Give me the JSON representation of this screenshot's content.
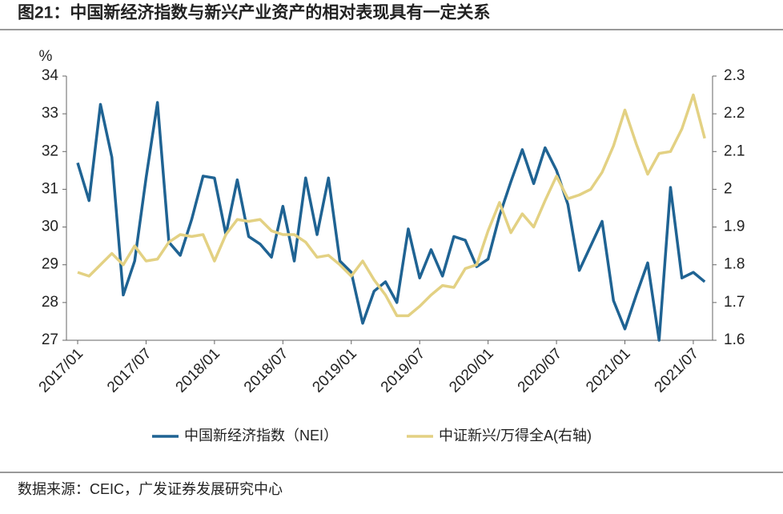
{
  "chart_data": {
    "type": "line",
    "title": "图21：中国新经济指数与新兴产业资产的相对表现具有一定关系",
    "source": "数据来源：CEIC，广发证券发展研究中心",
    "y_label": "%",
    "categories": [
      "2017/01",
      null,
      null,
      null,
      null,
      null,
      "2017/07",
      null,
      null,
      null,
      null,
      null,
      "2018/01",
      null,
      null,
      null,
      null,
      null,
      "2018/07",
      null,
      null,
      null,
      null,
      null,
      "2019/01",
      null,
      null,
      null,
      null,
      null,
      "2019/07",
      null,
      null,
      null,
      null,
      null,
      "2020/01",
      null,
      null,
      null,
      null,
      null,
      "2020/07",
      null,
      null,
      null,
      null,
      null,
      "2021/01",
      null,
      null,
      null,
      null,
      null,
      "2021/07",
      null
    ],
    "series": [
      {
        "name": "中国新经济指数（NEI）",
        "color": "#1f6393",
        "values": [
          31.7,
          30.7,
          33.25,
          31.85,
          28.2,
          29.1,
          31.3,
          33.3,
          29.6,
          29.25,
          30.2,
          31.35,
          31.3,
          29.8,
          31.25,
          29.75,
          29.55,
          29.2,
          30.55,
          29.1,
          31.3,
          29.8,
          31.3,
          29.1,
          28.8,
          27.45,
          28.3,
          28.55,
          28.0,
          29.95,
          28.65,
          29.4,
          28.7,
          29.75,
          29.65,
          28.95,
          29.15,
          30.3,
          31.2,
          32.05,
          31.15,
          32.1,
          31.5,
          30.6,
          28.85,
          29.5,
          30.15,
          28.05,
          27.3,
          28.2,
          29.05,
          27.0,
          31.05,
          28.65,
          28.8,
          28.55
        ]
      },
      {
        "name": "中证新兴/万得全A(右轴)",
        "color": "#e3d183",
        "axis": "y2",
        "values": [
          1.78,
          1.77,
          1.8,
          1.83,
          1.8,
          1.85,
          1.81,
          1.815,
          1.86,
          1.88,
          1.875,
          1.88,
          1.81,
          1.88,
          1.92,
          1.915,
          1.92,
          1.89,
          1.88,
          1.88,
          1.86,
          1.82,
          1.825,
          1.8,
          1.77,
          1.81,
          1.76,
          1.72,
          1.665,
          1.665,
          1.69,
          1.72,
          1.745,
          1.74,
          1.79,
          1.8,
          1.89,
          1.965,
          1.885,
          1.935,
          1.9,
          1.97,
          2.035,
          1.975,
          1.985,
          2.0,
          2.045,
          2.115,
          2.21,
          2.12,
          2.04,
          2.095,
          2.1,
          2.16,
          2.25,
          2.135
        ]
      }
    ],
    "ylim": [
      27,
      34
    ],
    "yticks": [
      27,
      28,
      29,
      30,
      31,
      32,
      33,
      34
    ],
    "y2lim": [
      1.6,
      2.3
    ],
    "y2ticks": [
      1.6,
      1.7,
      1.8,
      1.9,
      2,
      2.1,
      2.2,
      2.3
    ]
  }
}
